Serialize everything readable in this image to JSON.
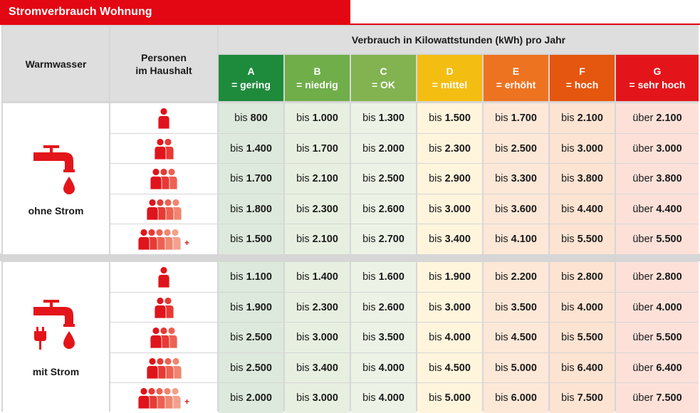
{
  "title": "Stromverbrauch Wohnung",
  "header": {
    "warmwasser": "Warmwasser",
    "personen": [
      "Personen",
      "im Haushalt"
    ],
    "verbrauch": "Verbrauch in Kilowattstunden (kWh) pro Jahr"
  },
  "categories": [
    {
      "letter": "A",
      "label": "= gering",
      "color": "#1e8a3c"
    },
    {
      "letter": "B",
      "label": "= niedrig",
      "color": "#6fae49"
    },
    {
      "letter": "C",
      "label": "= OK",
      "color": "#82b350"
    },
    {
      "letter": "D",
      "label": "= mittel",
      "color": "#f4bd12"
    },
    {
      "letter": "E",
      "label": "= erhöht",
      "color": "#ee7320"
    },
    {
      "letter": "F",
      "label": "= hoch",
      "color": "#e5560e"
    },
    {
      "letter": "G",
      "label": "= sehr hoch",
      "color": "#e3151a"
    }
  ],
  "column_tints": [
    "#dce9dc",
    "#e7f0e0",
    "#ecf3e6",
    "#fff5dd",
    "#fde8d8",
    "#fde3d2",
    "#fde1d9"
  ],
  "person_colors": [
    "#e0141c",
    "#e73a34",
    "#ec6152",
    "#f08570",
    "#f3a18c",
    "#f6b8a4"
  ],
  "plus_sign": "+",
  "groups": [
    {
      "label": "ohne Strom",
      "icon": "tap-drop-icon",
      "rows": [
        {
          "persons": 1,
          "plus": false,
          "values": [
            [
              "bis",
              "800"
            ],
            [
              "bis",
              "1.000"
            ],
            [
              "bis",
              "1.300"
            ],
            [
              "bis",
              "1.500"
            ],
            [
              "bis",
              "1.700"
            ],
            [
              "bis",
              "2.100"
            ],
            [
              "über",
              "2.100"
            ]
          ]
        },
        {
          "persons": 2,
          "plus": false,
          "values": [
            [
              "bis",
              "1.400"
            ],
            [
              "bis",
              "1.700"
            ],
            [
              "bis",
              "2.000"
            ],
            [
              "bis",
              "2.300"
            ],
            [
              "bis",
              "2.500"
            ],
            [
              "bis",
              "3.000"
            ],
            [
              "über",
              "3.000"
            ]
          ]
        },
        {
          "persons": 3,
          "plus": false,
          "values": [
            [
              "bis",
              "1.700"
            ],
            [
              "bis",
              "2.100"
            ],
            [
              "bis",
              "2.500"
            ],
            [
              "bis",
              "2.900"
            ],
            [
              "bis",
              "3.300"
            ],
            [
              "bis",
              "3.800"
            ],
            [
              "über",
              "3.800"
            ]
          ]
        },
        {
          "persons": 4,
          "plus": false,
          "values": [
            [
              "bis",
              "1.800"
            ],
            [
              "bis",
              "2.300"
            ],
            [
              "bis",
              "2.600"
            ],
            [
              "bis",
              "3.000"
            ],
            [
              "bis",
              "3.600"
            ],
            [
              "bis",
              "4.400"
            ],
            [
              "über",
              "4.400"
            ]
          ]
        },
        {
          "persons": 5,
          "plus": true,
          "values": [
            [
              "bis",
              "1.500"
            ],
            [
              "bis",
              "2.100"
            ],
            [
              "bis",
              "2.700"
            ],
            [
              "bis",
              "3.400"
            ],
            [
              "bis",
              "4.100"
            ],
            [
              "bis",
              "5.500"
            ],
            [
              "über",
              "5.500"
            ]
          ]
        }
      ]
    },
    {
      "label": "mit Strom",
      "icon": "tap-drop-plug-icon",
      "rows": [
        {
          "persons": 1,
          "plus": false,
          "values": [
            [
              "bis",
              "1.100"
            ],
            [
              "bis",
              "1.400"
            ],
            [
              "bis",
              "1.600"
            ],
            [
              "bis",
              "1.900"
            ],
            [
              "bis",
              "2.200"
            ],
            [
              "bis",
              "2.800"
            ],
            [
              "über",
              "2.800"
            ]
          ]
        },
        {
          "persons": 2,
          "plus": false,
          "values": [
            [
              "bis",
              "1.900"
            ],
            [
              "bis",
              "2.300"
            ],
            [
              "bis",
              "2.600"
            ],
            [
              "bis",
              "3.000"
            ],
            [
              "bis",
              "3.500"
            ],
            [
              "bis",
              "4.000"
            ],
            [
              "über",
              "4.000"
            ]
          ]
        },
        {
          "persons": 3,
          "plus": false,
          "values": [
            [
              "bis",
              "2.500"
            ],
            [
              "bis",
              "3.000"
            ],
            [
              "bis",
              "3.500"
            ],
            [
              "bis",
              "4.000"
            ],
            [
              "bis",
              "4.500"
            ],
            [
              "bis",
              "5.500"
            ],
            [
              "über",
              "5.500"
            ]
          ]
        },
        {
          "persons": 4,
          "plus": false,
          "values": [
            [
              "bis",
              "2.500"
            ],
            [
              "bis",
              "3.400"
            ],
            [
              "bis",
              "4.000"
            ],
            [
              "bis",
              "4.500"
            ],
            [
              "bis",
              "5.000"
            ],
            [
              "bis",
              "6.400"
            ],
            [
              "über",
              "6.400"
            ]
          ]
        },
        {
          "persons": 5,
          "plus": true,
          "values": [
            [
              "bis",
              "2.000"
            ],
            [
              "bis",
              "3.000"
            ],
            [
              "bis",
              "4.000"
            ],
            [
              "bis",
              "5.000"
            ],
            [
              "bis",
              "6.000"
            ],
            [
              "bis",
              "7.500"
            ],
            [
              "über",
              "7.500"
            ]
          ]
        }
      ]
    }
  ]
}
